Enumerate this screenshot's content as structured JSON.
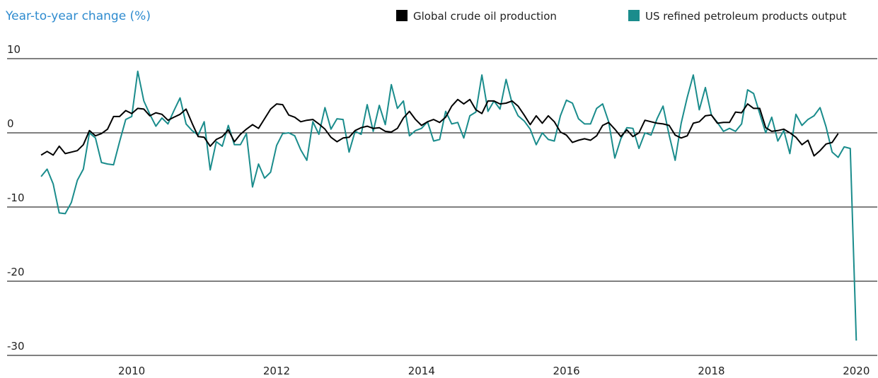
{
  "chart_data": {
    "type": "line",
    "title": "Year-to-year change (%)",
    "x": [
      2008.75,
      2008.833,
      2008.917,
      2009,
      2009.083,
      2009.167,
      2009.25,
      2009.333,
      2009.417,
      2009.5,
      2009.583,
      2009.667,
      2009.75,
      2009.833,
      2009.917,
      2010,
      2010.083,
      2010.167,
      2010.25,
      2010.333,
      2010.417,
      2010.5,
      2010.583,
      2010.667,
      2010.75,
      2010.833,
      2010.917,
      2011,
      2011.083,
      2011.167,
      2011.25,
      2011.333,
      2011.417,
      2011.5,
      2011.583,
      2011.667,
      2011.75,
      2011.833,
      2011.917,
      2012,
      2012.083,
      2012.167,
      2012.25,
      2012.333,
      2012.417,
      2012.5,
      2012.583,
      2012.667,
      2012.75,
      2012.833,
      2012.917,
      2013,
      2013.083,
      2013.167,
      2013.25,
      2013.333,
      2013.417,
      2013.5,
      2013.583,
      2013.667,
      2013.75,
      2013.833,
      2013.917,
      2014,
      2014.083,
      2014.167,
      2014.25,
      2014.333,
      2014.417,
      2014.5,
      2014.583,
      2014.667,
      2014.75,
      2014.833,
      2014.917,
      2015,
      2015.083,
      2015.167,
      2015.25,
      2015.333,
      2015.417,
      2015.5,
      2015.583,
      2015.667,
      2015.75,
      2015.833,
      2015.917,
      2016,
      2016.083,
      2016.167,
      2016.25,
      2016.333,
      2016.417,
      2016.5,
      2016.583,
      2016.667,
      2016.75,
      2016.833,
      2016.917,
      2017,
      2017.083,
      2017.167,
      2017.25,
      2017.333,
      2017.417,
      2017.5,
      2017.583,
      2017.667,
      2017.75,
      2017.833,
      2017.917,
      2018,
      2018.083,
      2018.167,
      2018.25,
      2018.333,
      2018.417,
      2018.5,
      2018.583,
      2018.667,
      2018.75,
      2018.833,
      2018.917,
      2019,
      2019.083,
      2019.167,
      2019.25,
      2019.333,
      2019.417,
      2019.5,
      2019.583,
      2019.667,
      2019.75,
      2019.833,
      2019.917,
      2020
    ],
    "series": [
      {
        "name": "Global crude oil production",
        "color": "#000000",
        "values": [
          -3,
          -2.5,
          -3,
          -1.8,
          -2.8,
          -2.6,
          -2.4,
          -1.6,
          0.3,
          -0.4,
          -0.1,
          0.5,
          2.2,
          2.2,
          3,
          2.6,
          3.3,
          3.2,
          2.3,
          2.7,
          2.5,
          1.7,
          2.1,
          2.5,
          3.2,
          1.3,
          -0.5,
          -0.6,
          -1.8,
          -0.9,
          -0.5,
          0.4,
          -1.2,
          -0.2,
          0.5,
          1.1,
          0.6,
          1.9,
          3.2,
          3.9,
          3.8,
          2.4,
          2.1,
          1.5,
          1.7,
          1.8,
          1.2,
          0.5,
          -0.6,
          -1.2,
          -0.7,
          -0.6,
          0.3,
          0.7,
          0.9,
          0.6,
          0.7,
          0.2,
          0.1,
          0.6,
          2,
          2.9,
          1.8,
          1,
          1.5,
          1.8,
          1.4,
          2.1,
          3.6,
          4.5,
          3.9,
          4.5,
          3.1,
          2.6,
          4.3,
          4.3,
          3.9,
          4,
          4.3,
          3.6,
          2.4,
          1.1,
          2.3,
          1.3,
          2.3,
          1.5,
          0.1,
          -0.3,
          -1.3,
          -1,
          -0.8,
          -1,
          -0.4,
          1,
          1.4,
          0.5,
          -0.5,
          0.4,
          -0.5,
          0,
          1.7,
          1.5,
          1.3,
          1.2,
          1,
          -0.3,
          -0.7,
          -0.4,
          1.3,
          1.5,
          2.3,
          2.4,
          1.3,
          1.4,
          1.4,
          2.8,
          2.7,
          3.9,
          3.3,
          3.3,
          0.7,
          0.2,
          0.3,
          0.5,
          0,
          -0.6,
          -1.6,
          -1,
          -3.1,
          -2.4,
          -1.5,
          -1.3,
          -0.1,
          null,
          null,
          null
        ]
      },
      {
        "name": "US refined petroleum products output",
        "color": "#1a8c8c",
        "values": [
          -5.9,
          -4.9,
          -6.9,
          -10.8,
          -10.9,
          -9.4,
          -6.4,
          -4.9,
          0,
          -0.7,
          -4,
          -4.2,
          -4.3,
          -1.2,
          1.8,
          2.2,
          8.3,
          4.3,
          2.5,
          0.9,
          2,
          1.2,
          3,
          4.7,
          1.2,
          0.3,
          -0.3,
          1.5,
          -5,
          -1.2,
          -1.8,
          1,
          -1.6,
          -1.6,
          -0.1,
          -7.3,
          -4.2,
          -6.1,
          -5.3,
          -1.7,
          -0.1,
          0,
          -0.4,
          -2.3,
          -3.7,
          1.5,
          -0.2,
          3.4,
          0.5,
          1.9,
          1.8,
          -2.6,
          0.2,
          -0.2,
          3.8,
          0.2,
          3.7,
          1.1,
          6.5,
          3.3,
          4.3,
          -0.4,
          0.3,
          0.6,
          1.5,
          -1.1,
          -0.9,
          2.9,
          1.2,
          1.4,
          -0.7,
          2.3,
          2.8,
          7.8,
          2.9,
          4.3,
          3.2,
          7.2,
          4,
          2.3,
          1.6,
          0.5,
          -1.6,
          0,
          -0.9,
          -1.1,
          2.3,
          4.4,
          4,
          1.9,
          1.2,
          1.2,
          3.3,
          3.9,
          1.5,
          -3.4,
          -0.8,
          0.7,
          0.6,
          -2.1,
          0,
          -0.3,
          1.9,
          3.6,
          -0.3,
          -3.7,
          1.3,
          4.8,
          7.8,
          3.1,
          6.1,
          2.4,
          1.4,
          0.2,
          0.6,
          0.2,
          1.2,
          5.8,
          5.3,
          2.6,
          0,
          2.1,
          -1.1,
          0.3,
          -2.8,
          2.5,
          1,
          1.8,
          2.3,
          3.4,
          0.8,
          -2.6,
          -3.3,
          -1.9,
          -2.1,
          -28
        ]
      }
    ],
    "xlim": [
      2008.28,
      2020.29
    ],
    "xticks": [
      2010,
      2012,
      2014,
      2016,
      2018,
      2020
    ],
    "ylim": [
      -30,
      10
    ],
    "yticks": [
      -30,
      -20,
      -10,
      0,
      10
    ],
    "grid": true
  }
}
